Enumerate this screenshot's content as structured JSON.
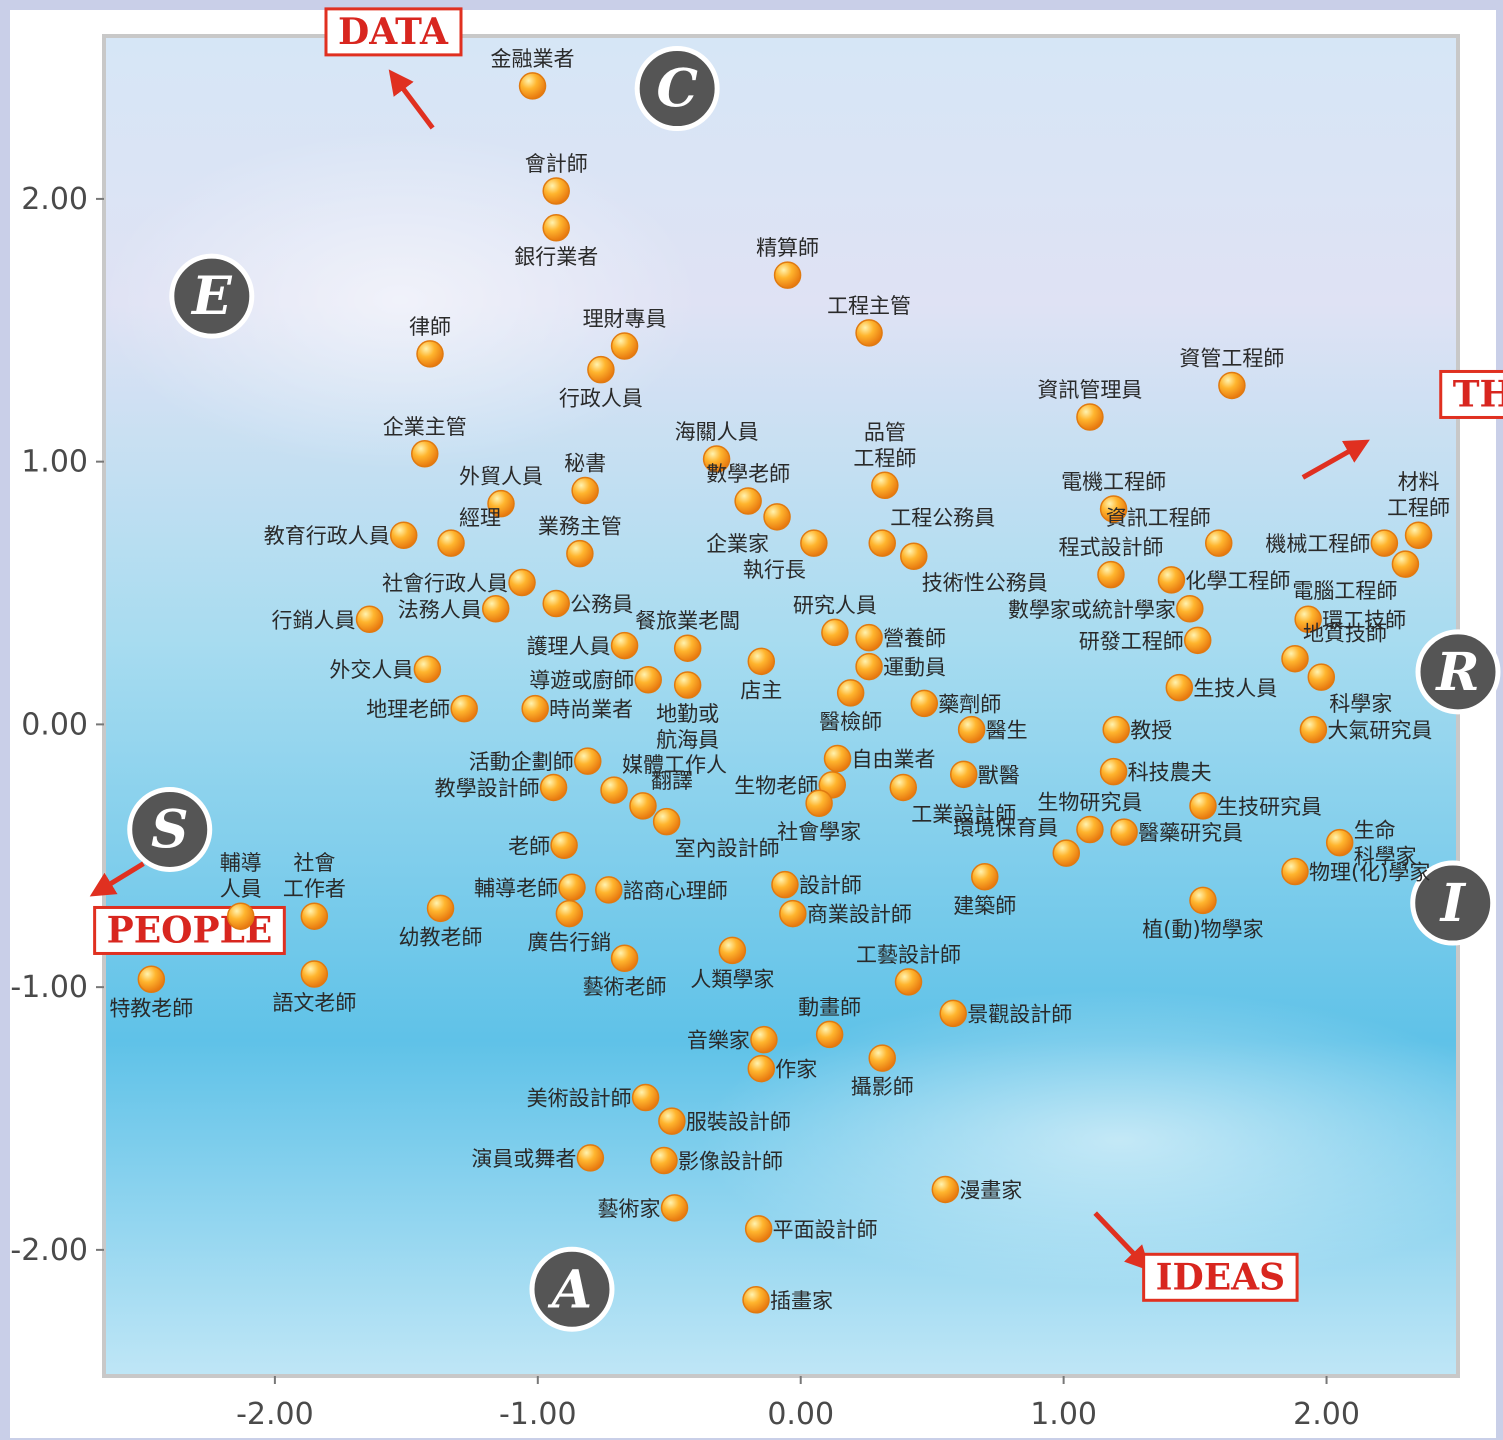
{
  "colors": {
    "point_fill": "#f5a020",
    "point_stroke": "#e07a10",
    "direction_red": "#e03020",
    "badge_dark": "#555555"
  },
  "chart_data": {
    "type": "scatter",
    "xlim": [
      -2.65,
      2.5
    ],
    "ylim": [
      -2.48,
      2.62
    ],
    "x_ticks": [
      {
        "value": -2,
        "label": "-2.00"
      },
      {
        "value": -1,
        "label": "-1.00"
      },
      {
        "value": 0,
        "label": "0.00"
      },
      {
        "value": 1,
        "label": "1.00"
      },
      {
        "value": 2,
        "label": "2.00"
      }
    ],
    "y_ticks": [
      {
        "value": 2,
        "label": "2.00"
      },
      {
        "value": 1,
        "label": "1.00"
      },
      {
        "value": 0,
        "label": "0.00"
      },
      {
        "value": -1,
        "label": "-1.00"
      },
      {
        "value": -2,
        "label": "-2.00"
      }
    ],
    "points": [
      {
        "label": "金融業者",
        "x": -1.02,
        "y": 2.43,
        "pos": "above"
      },
      {
        "label": "會計師",
        "x": -0.93,
        "y": 2.03,
        "pos": "above"
      },
      {
        "label": "銀行業者",
        "x": -0.93,
        "y": 1.89,
        "pos": "below"
      },
      {
        "label": "精算師",
        "x": -0.05,
        "y": 1.71,
        "pos": "above"
      },
      {
        "label": "律師",
        "x": -1.41,
        "y": 1.41,
        "pos": "above"
      },
      {
        "label": "理財專員",
        "x": -0.67,
        "y": 1.44,
        "pos": "above"
      },
      {
        "label": "行政人員",
        "x": -0.76,
        "y": 1.35,
        "pos": "below"
      },
      {
        "label": "工程主管",
        "x": 0.26,
        "y": 1.49,
        "pos": "above"
      },
      {
        "label": "資管工程師",
        "x": 1.64,
        "y": 1.29,
        "pos": "above"
      },
      {
        "label": "資訊管理員",
        "x": 1.1,
        "y": 1.17,
        "pos": "above"
      },
      {
        "label": "企業主管",
        "x": -1.43,
        "y": 1.03,
        "pos": "above"
      },
      {
        "label": "海關人員",
        "x": -0.32,
        "y": 1.01,
        "pos": "above"
      },
      {
        "label": "品管\n工程師",
        "x": 0.32,
        "y": 0.91,
        "pos": "above"
      },
      {
        "label": "外貿人員",
        "x": -1.14,
        "y": 0.84,
        "pos": "above"
      },
      {
        "label": "秘書",
        "x": -0.82,
        "y": 0.89,
        "pos": "above"
      },
      {
        "label": "數學老師",
        "x": -0.2,
        "y": 0.85,
        "pos": "above"
      },
      {
        "label": "企業家",
        "x": -0.09,
        "y": 0.79,
        "pos": "belowleft"
      },
      {
        "label": "電機工程師",
        "x": 1.19,
        "y": 0.82,
        "pos": "above"
      },
      {
        "label": "材料\n工程師",
        "x": 2.35,
        "y": 0.72,
        "pos": "above"
      },
      {
        "label": "教育行政人員",
        "x": -1.51,
        "y": 0.72,
        "pos": "left"
      },
      {
        "label": "經理",
        "x": -1.33,
        "y": 0.69,
        "pos": "aboveright"
      },
      {
        "label": "業務主管",
        "x": -0.84,
        "y": 0.65,
        "pos": "above"
      },
      {
        "label": "工程公務員",
        "x": 0.31,
        "y": 0.69,
        "pos": "aboveright"
      },
      {
        "label": "執行長",
        "x": 0.05,
        "y": 0.69,
        "pos": "belowleft"
      },
      {
        "label": "資訊工程師",
        "x": 1.59,
        "y": 0.69,
        "pos": "aboveleft"
      },
      {
        "label": "機械工程師",
        "x": 2.22,
        "y": 0.69,
        "pos": "left"
      },
      {
        "label": "技術性公務員",
        "x": 0.43,
        "y": 0.64,
        "pos": "belowright"
      },
      {
        "label": "程式設計師",
        "x": 1.18,
        "y": 0.57,
        "pos": "above"
      },
      {
        "label": "電腦工程師",
        "x": 2.3,
        "y": 0.61,
        "pos": "belowleft"
      },
      {
        "label": "社會行政人員",
        "x": -1.06,
        "y": 0.54,
        "pos": "left"
      },
      {
        "label": "化學工程師",
        "x": 1.41,
        "y": 0.55,
        "pos": "right"
      },
      {
        "label": "行銷人員",
        "x": -1.64,
        "y": 0.4,
        "pos": "left"
      },
      {
        "label": "法務人員",
        "x": -1.16,
        "y": 0.44,
        "pos": "left"
      },
      {
        "label": "公務員",
        "x": -0.93,
        "y": 0.46,
        "pos": "right"
      },
      {
        "label": "數學家或統計學家",
        "x": 1.48,
        "y": 0.44,
        "pos": "left"
      },
      {
        "label": "研究人員",
        "x": 0.13,
        "y": 0.35,
        "pos": "above"
      },
      {
        "label": "餐旅業老闆",
        "x": -0.43,
        "y": 0.29,
        "pos": "above"
      },
      {
        "label": "營養師",
        "x": 0.26,
        "y": 0.33,
        "pos": "right"
      },
      {
        "label": "環工技師",
        "x": 1.93,
        "y": 0.4,
        "pos": "right"
      },
      {
        "label": "研發工程師",
        "x": 1.51,
        "y": 0.32,
        "pos": "left"
      },
      {
        "label": "護理人員",
        "x": -0.67,
        "y": 0.3,
        "pos": "left"
      },
      {
        "label": "導遊或廚師",
        "x": -0.58,
        "y": 0.17,
        "pos": "left"
      },
      {
        "label": "店主",
        "x": -0.15,
        "y": 0.24,
        "pos": "below"
      },
      {
        "label": "運動員",
        "x": 0.26,
        "y": 0.22,
        "pos": "right"
      },
      {
        "label": "地質技師",
        "x": 1.88,
        "y": 0.25,
        "pos": "aboveright"
      },
      {
        "label": "外交人員",
        "x": -1.42,
        "y": 0.21,
        "pos": "left"
      },
      {
        "label": "地勤或\n航海員",
        "x": -0.43,
        "y": 0.15,
        "pos": "below"
      },
      {
        "label": "科學家",
        "x": 1.98,
        "y": 0.18,
        "pos": "belowright"
      },
      {
        "label": "生技人員",
        "x": 1.44,
        "y": 0.14,
        "pos": "right"
      },
      {
        "label": "醫檢師",
        "x": 0.19,
        "y": 0.12,
        "pos": "below"
      },
      {
        "label": "地理老師",
        "x": -1.28,
        "y": 0.06,
        "pos": "left"
      },
      {
        "label": "時尚業者",
        "x": -1.01,
        "y": 0.06,
        "pos": "right"
      },
      {
        "label": "藥劑師",
        "x": 0.47,
        "y": 0.08,
        "pos": "right"
      },
      {
        "label": "醫生",
        "x": 0.65,
        "y": -0.02,
        "pos": "right"
      },
      {
        "label": "教授",
        "x": 1.2,
        "y": -0.02,
        "pos": "right"
      },
      {
        "label": "大氣研究員",
        "x": 1.95,
        "y": -0.02,
        "pos": "right"
      },
      {
        "label": "活動企劃師",
        "x": -0.81,
        "y": -0.14,
        "pos": "left"
      },
      {
        "label": "自由業者",
        "x": 0.14,
        "y": -0.13,
        "pos": "right"
      },
      {
        "label": "媒體工作人",
        "x": -0.71,
        "y": -0.25,
        "pos": "aboveright"
      },
      {
        "label": "科技農夫",
        "x": 1.19,
        "y": -0.18,
        "pos": "right"
      },
      {
        "label": "生物老師",
        "x": 0.12,
        "y": -0.23,
        "pos": "left"
      },
      {
        "label": "獸醫",
        "x": 0.62,
        "y": -0.19,
        "pos": "right"
      },
      {
        "label": "教學設計師",
        "x": -0.94,
        "y": -0.24,
        "pos": "left"
      },
      {
        "label": "翻譯",
        "x": -0.6,
        "y": -0.31,
        "pos": "aboveright"
      },
      {
        "label": "工業設計師",
        "x": 0.39,
        "y": -0.24,
        "pos": "belowright"
      },
      {
        "label": "社會學家",
        "x": 0.07,
        "y": -0.3,
        "pos": "below"
      },
      {
        "label": "生技研究員",
        "x": 1.53,
        "y": -0.31,
        "pos": "right"
      },
      {
        "label": "室內設計師",
        "x": -0.51,
        "y": -0.37,
        "pos": "belowright"
      },
      {
        "label": "生物研究員",
        "x": 1.1,
        "y": -0.4,
        "pos": "above"
      },
      {
        "label": "醫藥研究員",
        "x": 1.23,
        "y": -0.41,
        "pos": "right"
      },
      {
        "label": "老師",
        "x": -0.9,
        "y": -0.46,
        "pos": "left"
      },
      {
        "label": "環境保育員",
        "x": 1.01,
        "y": -0.49,
        "pos": "aboveleft"
      },
      {
        "label": "生命\n科學家",
        "x": 2.05,
        "y": -0.45,
        "pos": "right"
      },
      {
        "label": "建築師",
        "x": 0.7,
        "y": -0.58,
        "pos": "below"
      },
      {
        "label": "物理(化)學家",
        "x": 1.88,
        "y": -0.56,
        "pos": "right"
      },
      {
        "label": "輔導老師",
        "x": -0.87,
        "y": -0.62,
        "pos": "left"
      },
      {
        "label": "諮商心理師",
        "x": -0.73,
        "y": -0.63,
        "pos": "right"
      },
      {
        "label": "設計師",
        "x": -0.06,
        "y": -0.61,
        "pos": "right"
      },
      {
        "label": "植(動)物學家",
        "x": 1.53,
        "y": -0.67,
        "pos": "below"
      },
      {
        "label": "輔導\n人員",
        "x": -2.13,
        "y": -0.73,
        "pos": "above"
      },
      {
        "label": "社會\n工作者",
        "x": -1.85,
        "y": -0.73,
        "pos": "above"
      },
      {
        "label": "幼教老師",
        "x": -1.37,
        "y": -0.7,
        "pos": "below"
      },
      {
        "label": "廣告行銷",
        "x": -0.88,
        "y": -0.72,
        "pos": "below"
      },
      {
        "label": "商業設計師",
        "x": -0.03,
        "y": -0.72,
        "pos": "right"
      },
      {
        "label": "藝術老師",
        "x": -0.67,
        "y": -0.89,
        "pos": "below"
      },
      {
        "label": "人類學家",
        "x": -0.26,
        "y": -0.86,
        "pos": "below"
      },
      {
        "label": "工藝設計師",
        "x": 0.41,
        "y": -0.98,
        "pos": "above"
      },
      {
        "label": "語文老師",
        "x": -1.85,
        "y": -0.95,
        "pos": "below"
      },
      {
        "label": "特教老師",
        "x": -2.47,
        "y": -0.97,
        "pos": "below"
      },
      {
        "label": "景觀設計師",
        "x": 0.58,
        "y": -1.1,
        "pos": "right"
      },
      {
        "label": "動畫師",
        "x": 0.11,
        "y": -1.18,
        "pos": "above"
      },
      {
        "label": "音樂家",
        "x": -0.14,
        "y": -1.2,
        "pos": "left"
      },
      {
        "label": "攝影師",
        "x": 0.31,
        "y": -1.27,
        "pos": "below"
      },
      {
        "label": "作家",
        "x": -0.15,
        "y": -1.31,
        "pos": "right"
      },
      {
        "label": "美術設計師",
        "x": -0.59,
        "y": -1.42,
        "pos": "left"
      },
      {
        "label": "服裝設計師",
        "x": -0.49,
        "y": -1.51,
        "pos": "right"
      },
      {
        "label": "演員或舞者",
        "x": -0.8,
        "y": -1.65,
        "pos": "left"
      },
      {
        "label": "影像設計師",
        "x": -0.52,
        "y": -1.66,
        "pos": "right"
      },
      {
        "label": "漫畫家",
        "x": 0.55,
        "y": -1.77,
        "pos": "right"
      },
      {
        "label": "藝術家",
        "x": -0.48,
        "y": -1.84,
        "pos": "left"
      },
      {
        "label": "平面設計師",
        "x": -0.16,
        "y": -1.92,
        "pos": "right"
      },
      {
        "label": "插畫家",
        "x": -0.17,
        "y": -2.19,
        "pos": "right"
      }
    ],
    "hexagon_letters": [
      {
        "letter": "C",
        "x": -0.47,
        "y": 2.42
      },
      {
        "letter": "E",
        "x": -2.24,
        "y": 1.63
      },
      {
        "letter": "R",
        "x": 2.5,
        "y": 0.2
      },
      {
        "letter": "S",
        "x": -2.4,
        "y": -0.4
      },
      {
        "letter": "I",
        "x": 2.48,
        "y": -0.68
      },
      {
        "letter": "A",
        "x": -0.87,
        "y": -2.15
      }
    ],
    "directions": [
      {
        "label": "DATA",
        "x": -1.76,
        "y": 2.59,
        "arrow": [
          [
            -1.4,
            2.27
          ],
          [
            -1.55,
            2.47
          ]
        ]
      },
      {
        "label": "THINGS",
        "x": 2.48,
        "y": 1.21,
        "arrow": [
          [
            1.91,
            0.94
          ],
          [
            2.14,
            1.07
          ]
        ]
      },
      {
        "label": "PEOPLE",
        "x": -2.64,
        "y": -0.83,
        "arrow": [
          [
            -2.5,
            -0.53
          ],
          [
            -2.68,
            -0.64
          ]
        ]
      },
      {
        "label": "IDEAS",
        "x": 1.35,
        "y": -2.15,
        "arrow": [
          [
            1.12,
            -1.86
          ],
          [
            1.31,
            -2.06
          ]
        ]
      }
    ]
  }
}
